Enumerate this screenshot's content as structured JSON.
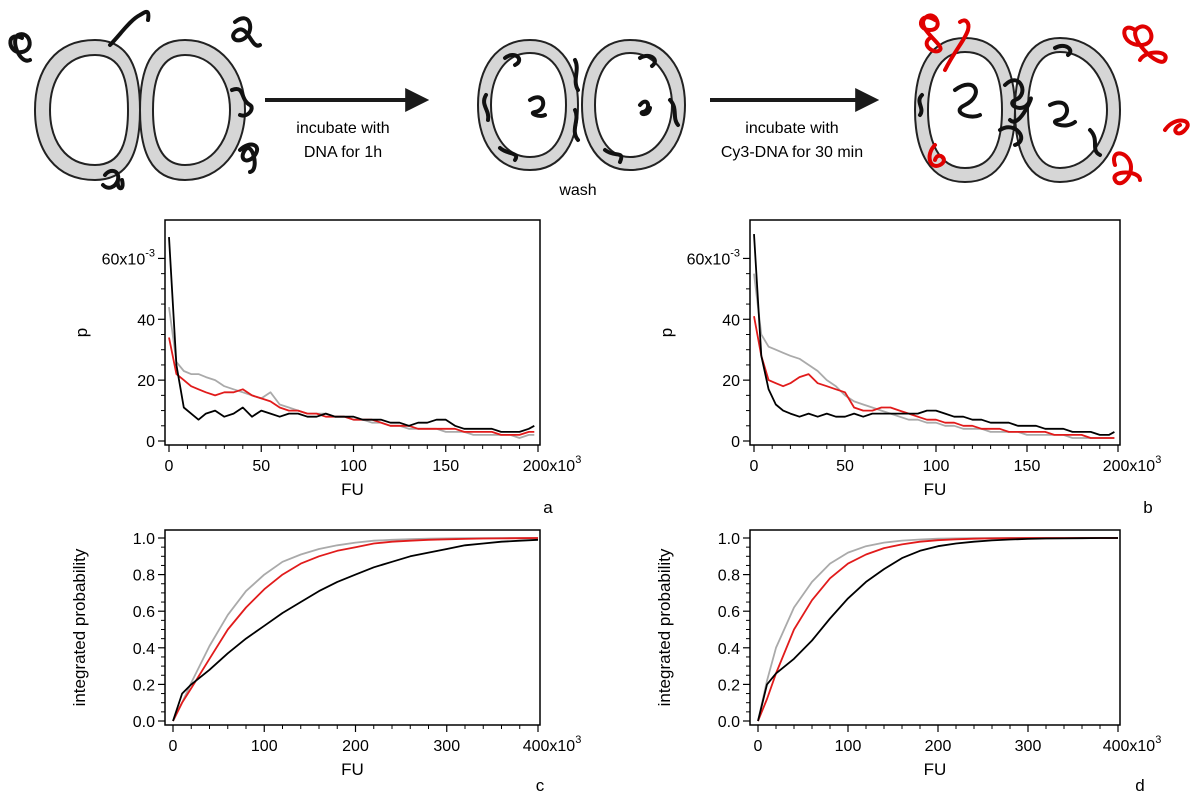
{
  "schematic": {
    "step1_line1": "incubate with",
    "step1_line2": "DNA for 1h",
    "wash_label": "wash",
    "step2_line1": "incubate with",
    "step2_line2": "Cy3-DNA for 30 min"
  },
  "colors": {
    "black_series": "#000000",
    "red_series": "#e11b1b",
    "gray_series": "#aaaaaa",
    "cell_fill": "#d6d6d6",
    "cy3_dna": "#e00000"
  },
  "chart_data": [
    {
      "panel": "a",
      "type": "line",
      "xlabel": "FU",
      "ylabel": "p",
      "xlim": [
        0,
        200000
      ],
      "ylim": [
        0,
        0.07
      ],
      "x_ticks": [
        0,
        50000,
        100000,
        150000,
        200000
      ],
      "x_tick_labels": [
        "0",
        "50",
        "100",
        "150",
        "200x10"
      ],
      "x_tick_exp": "3",
      "y_ticks": [
        0,
        0.02,
        0.04,
        0.06
      ],
      "y_tick_labels": [
        "0",
        "20",
        "40",
        "60x10"
      ],
      "y_tick_exp": "-3",
      "x": [
        0,
        4000,
        8000,
        12000,
        16000,
        20000,
        25000,
        30000,
        35000,
        40000,
        45000,
        50000,
        55000,
        60000,
        65000,
        70000,
        75000,
        80000,
        85000,
        90000,
        95000,
        100000,
        105000,
        110000,
        115000,
        120000,
        125000,
        130000,
        135000,
        140000,
        145000,
        150000,
        155000,
        160000,
        165000,
        170000,
        175000,
        180000,
        185000,
        190000,
        195000,
        198000
      ],
      "series": [
        {
          "color": "#000000",
          "values": [
            0.067,
            0.025,
            0.011,
            0.009,
            0.007,
            0.009,
            0.01,
            0.008,
            0.009,
            0.011,
            0.008,
            0.01,
            0.009,
            0.008,
            0.009,
            0.009,
            0.008,
            0.008,
            0.009,
            0.008,
            0.008,
            0.008,
            0.007,
            0.007,
            0.007,
            0.006,
            0.006,
            0.005,
            0.006,
            0.006,
            0.007,
            0.007,
            0.005,
            0.004,
            0.004,
            0.004,
            0.004,
            0.003,
            0.003,
            0.003,
            0.004,
            0.005
          ]
        },
        {
          "color": "#e11b1b",
          "values": [
            0.034,
            0.022,
            0.02,
            0.018,
            0.017,
            0.016,
            0.015,
            0.016,
            0.016,
            0.017,
            0.015,
            0.014,
            0.013,
            0.011,
            0.01,
            0.01,
            0.009,
            0.009,
            0.008,
            0.008,
            0.008,
            0.007,
            0.007,
            0.007,
            0.006,
            0.005,
            0.005,
            0.005,
            0.004,
            0.004,
            0.004,
            0.004,
            0.004,
            0.003,
            0.003,
            0.003,
            0.003,
            0.002,
            0.002,
            0.002,
            0.003,
            0.003
          ]
        },
        {
          "color": "#aaaaaa",
          "values": [
            0.044,
            0.026,
            0.023,
            0.022,
            0.022,
            0.021,
            0.02,
            0.018,
            0.017,
            0.016,
            0.015,
            0.014,
            0.016,
            0.012,
            0.011,
            0.01,
            0.009,
            0.009,
            0.009,
            0.008,
            0.008,
            0.007,
            0.007,
            0.006,
            0.006,
            0.005,
            0.005,
            0.004,
            0.004,
            0.004,
            0.004,
            0.003,
            0.003,
            0.003,
            0.002,
            0.002,
            0.002,
            0.002,
            0.002,
            0.001,
            0.002,
            0.002
          ]
        }
      ]
    },
    {
      "panel": "b",
      "type": "line",
      "xlabel": "FU",
      "ylabel": "p",
      "xlim": [
        0,
        200000
      ],
      "ylim": [
        0,
        0.07
      ],
      "x_ticks": [
        0,
        50000,
        100000,
        150000,
        200000
      ],
      "x_tick_labels": [
        "0",
        "50",
        "100",
        "150",
        "200x10"
      ],
      "x_tick_exp": "3",
      "y_ticks": [
        0,
        0.02,
        0.04,
        0.06
      ],
      "y_tick_labels": [
        "0",
        "20",
        "40",
        "60x10"
      ],
      "y_tick_exp": "-3",
      "x": [
        0,
        4000,
        8000,
        12000,
        16000,
        20000,
        25000,
        30000,
        35000,
        40000,
        45000,
        50000,
        55000,
        60000,
        65000,
        70000,
        75000,
        80000,
        85000,
        90000,
        95000,
        100000,
        105000,
        110000,
        115000,
        120000,
        125000,
        130000,
        135000,
        140000,
        145000,
        150000,
        155000,
        160000,
        165000,
        170000,
        175000,
        180000,
        185000,
        190000,
        195000,
        198000
      ],
      "series": [
        {
          "color": "#000000",
          "values": [
            0.068,
            0.028,
            0.017,
            0.012,
            0.01,
            0.009,
            0.008,
            0.009,
            0.008,
            0.009,
            0.008,
            0.008,
            0.009,
            0.008,
            0.009,
            0.009,
            0.009,
            0.009,
            0.009,
            0.009,
            0.01,
            0.01,
            0.009,
            0.008,
            0.008,
            0.007,
            0.007,
            0.006,
            0.006,
            0.006,
            0.005,
            0.005,
            0.005,
            0.004,
            0.004,
            0.004,
            0.003,
            0.003,
            0.003,
            0.002,
            0.002,
            0.003
          ]
        },
        {
          "color": "#e11b1b",
          "values": [
            0.041,
            0.028,
            0.02,
            0.019,
            0.018,
            0.019,
            0.021,
            0.022,
            0.019,
            0.018,
            0.017,
            0.016,
            0.011,
            0.01,
            0.01,
            0.011,
            0.011,
            0.01,
            0.009,
            0.008,
            0.007,
            0.007,
            0.006,
            0.006,
            0.005,
            0.005,
            0.004,
            0.004,
            0.004,
            0.003,
            0.003,
            0.003,
            0.003,
            0.003,
            0.002,
            0.002,
            0.002,
            0.002,
            0.001,
            0.001,
            0.001,
            0.001
          ]
        },
        {
          "color": "#aaaaaa",
          "values": [
            0.055,
            0.035,
            0.031,
            0.03,
            0.029,
            0.028,
            0.027,
            0.025,
            0.023,
            0.02,
            0.018,
            0.015,
            0.013,
            0.012,
            0.011,
            0.01,
            0.009,
            0.008,
            0.007,
            0.007,
            0.006,
            0.006,
            0.005,
            0.005,
            0.004,
            0.004,
            0.004,
            0.003,
            0.003,
            0.003,
            0.003,
            0.002,
            0.002,
            0.002,
            0.002,
            0.002,
            0.001,
            0.001,
            0.001,
            0.001,
            0.001,
            0.001
          ]
        }
      ]
    },
    {
      "panel": "c",
      "type": "line",
      "xlabel": "FU",
      "ylabel": "integrated probability",
      "xlim": [
        0,
        400000
      ],
      "ylim": [
        0,
        1.0
      ],
      "x_ticks": [
        0,
        100000,
        200000,
        300000,
        400000
      ],
      "x_tick_labels": [
        "0",
        "100",
        "200",
        "300",
        "400x10"
      ],
      "x_tick_exp": "3",
      "y_ticks": [
        0,
        0.2,
        0.4,
        0.6,
        0.8,
        1.0
      ],
      "y_tick_labels": [
        "0.0",
        "0.2",
        "0.4",
        "0.6",
        "0.8",
        "1.0"
      ],
      "x": [
        0,
        10000,
        20000,
        40000,
        60000,
        80000,
        100000,
        120000,
        140000,
        160000,
        180000,
        200000,
        220000,
        240000,
        260000,
        280000,
        300000,
        320000,
        340000,
        360000,
        380000,
        400000
      ],
      "series": [
        {
          "color": "#000000",
          "values": [
            0.0,
            0.15,
            0.2,
            0.28,
            0.37,
            0.45,
            0.52,
            0.59,
            0.65,
            0.71,
            0.76,
            0.8,
            0.84,
            0.87,
            0.9,
            0.92,
            0.94,
            0.96,
            0.97,
            0.98,
            0.985,
            0.99
          ]
        },
        {
          "color": "#e11b1b",
          "values": [
            0.0,
            0.1,
            0.18,
            0.34,
            0.5,
            0.62,
            0.72,
            0.8,
            0.86,
            0.9,
            0.93,
            0.95,
            0.97,
            0.98,
            0.985,
            0.99,
            0.993,
            0.995,
            0.997,
            0.998,
            0.999,
            1.0
          ]
        },
        {
          "color": "#aaaaaa",
          "values": [
            0.0,
            0.1,
            0.21,
            0.41,
            0.58,
            0.71,
            0.8,
            0.87,
            0.91,
            0.94,
            0.96,
            0.975,
            0.985,
            0.99,
            0.994,
            0.996,
            0.998,
            0.999,
            0.999,
            1.0,
            1.0,
            1.0
          ]
        }
      ]
    },
    {
      "panel": "d",
      "type": "line",
      "xlabel": "FU",
      "ylabel": "integrated probability",
      "xlim": [
        0,
        400000
      ],
      "ylim": [
        0,
        1.0
      ],
      "x_ticks": [
        0,
        100000,
        200000,
        300000,
        400000
      ],
      "x_tick_labels": [
        "0",
        "100",
        "200",
        "300",
        "400x10"
      ],
      "x_tick_exp": "3",
      "y_ticks": [
        0,
        0.2,
        0.4,
        0.6,
        0.8,
        1.0
      ],
      "y_tick_labels": [
        "0.0",
        "0.2",
        "0.4",
        "0.6",
        "0.8",
        "1.0"
      ],
      "x": [
        0,
        10000,
        20000,
        40000,
        60000,
        80000,
        100000,
        120000,
        140000,
        160000,
        180000,
        200000,
        220000,
        240000,
        260000,
        280000,
        300000,
        320000,
        340000,
        360000,
        380000,
        400000
      ],
      "series": [
        {
          "color": "#000000",
          "values": [
            0.0,
            0.2,
            0.26,
            0.34,
            0.44,
            0.56,
            0.67,
            0.76,
            0.83,
            0.89,
            0.93,
            0.955,
            0.97,
            0.98,
            0.987,
            0.992,
            0.995,
            0.997,
            0.998,
            0.999,
            1.0,
            1.0
          ]
        },
        {
          "color": "#e11b1b",
          "values": [
            0.0,
            0.12,
            0.26,
            0.5,
            0.66,
            0.78,
            0.86,
            0.91,
            0.945,
            0.965,
            0.98,
            0.988,
            0.993,
            0.996,
            0.998,
            0.999,
            1.0,
            1.0,
            1.0,
            1.0,
            1.0,
            1.0
          ]
        },
        {
          "color": "#aaaaaa",
          "values": [
            0.0,
            0.22,
            0.4,
            0.62,
            0.76,
            0.86,
            0.92,
            0.955,
            0.975,
            0.986,
            0.992,
            0.996,
            0.998,
            0.999,
            1.0,
            1.0,
            1.0,
            1.0,
            1.0,
            1.0,
            1.0,
            1.0
          ]
        }
      ]
    }
  ]
}
